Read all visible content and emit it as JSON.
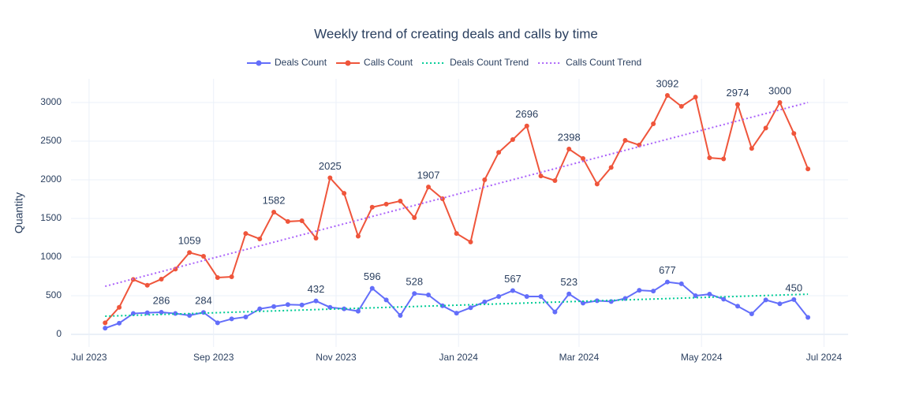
{
  "chart_data": {
    "type": "line",
    "title": "Weekly trend of creating deals and calls by time",
    "y_label": "Quantity",
    "x": [
      "2023-07-09",
      "2023-07-16",
      "2023-07-23",
      "2023-07-30",
      "2023-08-06",
      "2023-08-13",
      "2023-08-20",
      "2023-08-27",
      "2023-09-03",
      "2023-09-10",
      "2023-09-17",
      "2023-09-24",
      "2023-10-01",
      "2023-10-08",
      "2023-10-15",
      "2023-10-22",
      "2023-10-29",
      "2023-11-05",
      "2023-11-12",
      "2023-11-19",
      "2023-11-26",
      "2023-12-03",
      "2023-12-10",
      "2023-12-17",
      "2023-12-24",
      "2023-12-31",
      "2024-01-07",
      "2024-01-14",
      "2024-01-21",
      "2024-01-28",
      "2024-02-04",
      "2024-02-11",
      "2024-02-18",
      "2024-02-25",
      "2024-03-03",
      "2024-03-10",
      "2024-03-17",
      "2024-03-24",
      "2024-03-31",
      "2024-04-07",
      "2024-04-14",
      "2024-04-21",
      "2024-04-28",
      "2024-05-05",
      "2024-05-12",
      "2024-05-19",
      "2024-05-26",
      "2024-06-02",
      "2024-06-09",
      "2024-06-16",
      "2024-06-23"
    ],
    "series": [
      {
        "name": "Deals Count",
        "color": "#636efa",
        "mode": "lines+markers",
        "values": [
          80,
          145,
          270,
          280,
          286,
          270,
          245,
          284,
          150,
          200,
          225,
          330,
          360,
          385,
          380,
          432,
          350,
          330,
          300,
          596,
          445,
          245,
          528,
          510,
          370,
          275,
          345,
          420,
          490,
          567,
          490,
          490,
          290,
          523,
          405,
          435,
          425,
          465,
          570,
          560,
          677,
          655,
          500,
          520,
          455,
          365,
          265,
          445,
          395,
          450,
          220
        ],
        "annotate_indices": [
          4,
          7,
          15,
          19,
          22,
          29,
          33,
          40,
          49
        ]
      },
      {
        "name": "Calls Count",
        "color": "#EF553B",
        "mode": "lines+markers",
        "values": [
          150,
          350,
          710,
          635,
          715,
          845,
          1059,
          1010,
          735,
          745,
          1305,
          1235,
          1582,
          1460,
          1470,
          1245,
          2025,
          1825,
          1270,
          1645,
          1685,
          1725,
          1510,
          1907,
          1755,
          1305,
          1195,
          2000,
          2355,
          2520,
          2696,
          2050,
          1990,
          2398,
          2275,
          1945,
          2160,
          2510,
          2450,
          2725,
          3092,
          2950,
          3070,
          2285,
          2270,
          2974,
          2405,
          2670,
          3000,
          2600,
          2140
        ],
        "annotate_indices": [
          6,
          12,
          16,
          23,
          30,
          33,
          40,
          45,
          48
        ]
      },
      {
        "name": "Deals Count Trend",
        "color": "#00cc96",
        "mode": "dotted",
        "x": [
          "2023-07-09",
          "2024-06-23"
        ],
        "values": [
          235,
          520
        ]
      },
      {
        "name": "Calls Count Trend",
        "color": "#ab63fa",
        "mode": "dotted",
        "x": [
          "2023-07-09",
          "2024-06-23"
        ],
        "values": [
          622,
          3000
        ]
      }
    ],
    "xlim": [
      "2023-06-22",
      "2024-07-13"
    ],
    "xticks": [
      {
        "value": "2023-07-01",
        "label": "Jul 2023"
      },
      {
        "value": "2023-09-01",
        "label": "Sep 2023"
      },
      {
        "value": "2023-11-01",
        "label": "Nov 2023"
      },
      {
        "value": "2024-01-01",
        "label": "Jan 2024"
      },
      {
        "value": "2024-03-01",
        "label": "Mar 2024"
      },
      {
        "value": "2024-05-01",
        "label": "May 2024"
      },
      {
        "value": "2024-07-01",
        "label": "Jul 2024"
      }
    ],
    "ylim": [
      -163,
      3306
    ],
    "yticks": [
      0,
      500,
      1000,
      1500,
      2000,
      2500,
      3000
    ],
    "grid": true,
    "legend": "top"
  }
}
